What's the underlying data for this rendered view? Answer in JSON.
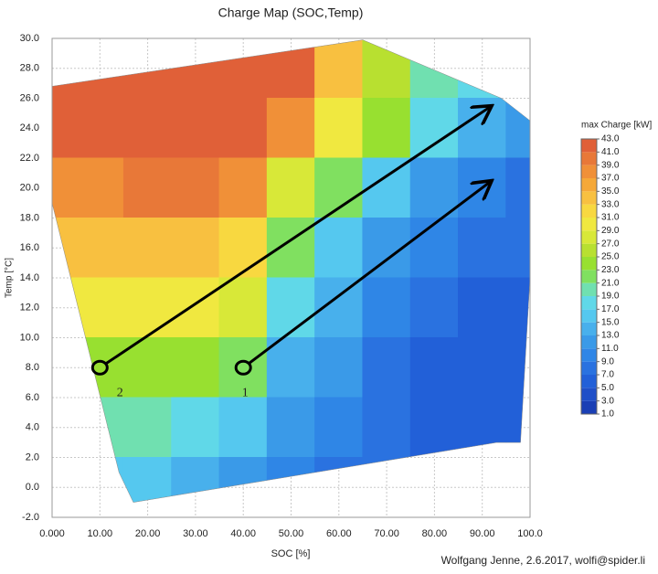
{
  "chart_data": {
    "type": "contour",
    "title": "Charge Map (SOC,Temp)",
    "x_label": "SOC [%]",
    "y_label": "Temp [°C]",
    "credit": "Wolfgang Jenne, 2.6.2017, wolfi@spider.li",
    "xlim": [
      0,
      100
    ],
    "xticks": [
      {
        "value": 0,
        "label": "0.000"
      },
      {
        "value": 10,
        "label": "10.00"
      },
      {
        "value": 20,
        "label": "20.00"
      },
      {
        "value": 30,
        "label": "30.00"
      },
      {
        "value": 40,
        "label": "40.00"
      },
      {
        "value": 50,
        "label": "50.00"
      },
      {
        "value": 60,
        "label": "60.00"
      },
      {
        "value": 70,
        "label": "70.00"
      },
      {
        "value": 80,
        "label": "80.00"
      },
      {
        "value": 90,
        "label": "90.00"
      },
      {
        "value": 100,
        "label": "100.0"
      }
    ],
    "ylim": [
      -2,
      30
    ],
    "yticks": [
      {
        "value": -2,
        "label": "-2.0"
      },
      {
        "value": 0,
        "label": "0.0"
      },
      {
        "value": 2,
        "label": "2.0"
      },
      {
        "value": 4,
        "label": "4.0"
      },
      {
        "value": 6,
        "label": "6.0"
      },
      {
        "value": 8,
        "label": "8.0"
      },
      {
        "value": 10,
        "label": "10.0"
      },
      {
        "value": 12,
        "label": "12.0"
      },
      {
        "value": 14,
        "label": "14.0"
      },
      {
        "value": 16,
        "label": "16.0"
      },
      {
        "value": 18,
        "label": "18.0"
      },
      {
        "value": 20,
        "label": "20.0"
      },
      {
        "value": 22,
        "label": "22.0"
      },
      {
        "value": 24,
        "label": "24.0"
      },
      {
        "value": 26,
        "label": "26.0"
      },
      {
        "value": 28,
        "label": "28.0"
      },
      {
        "value": 30,
        "label": "30.0"
      }
    ],
    "grid": true,
    "x": [
      0,
      10,
      20,
      30,
      40,
      50,
      60,
      70,
      80,
      90,
      100
    ],
    "y": [
      28,
      24,
      20,
      16,
      12,
      8,
      4,
      0
    ],
    "z": [
      [
        41,
        42,
        42,
        42,
        42,
        41,
        33,
        25,
        20,
        17,
        15
      ],
      [
        41,
        42,
        42,
        42,
        41,
        37,
        29,
        23,
        17,
        13,
        11
      ],
      [
        37,
        38,
        39,
        39,
        37,
        27,
        21,
        15,
        11,
        9,
        7
      ],
      [
        33,
        33,
        33,
        33,
        31,
        21,
        15,
        11,
        9,
        7,
        7
      ],
      [
        29,
        29,
        29,
        29,
        27,
        17,
        13,
        9,
        7,
        5,
        5
      ],
      [
        25,
        23,
        23,
        23,
        21,
        13,
        11,
        7,
        5,
        5,
        5
      ],
      [
        21,
        19,
        19,
        17,
        15,
        11,
        9,
        7,
        5,
        5,
        5
      ],
      [
        17,
        15,
        15,
        13,
        11,
        9,
        7,
        7,
        5,
        5,
        5
      ]
    ],
    "boundary": [
      [
        0,
        26.8
      ],
      [
        65,
        29.9
      ],
      [
        94,
        26
      ],
      [
        100,
        24.5
      ],
      [
        100,
        14
      ],
      [
        98,
        3
      ],
      [
        93,
        3
      ],
      [
        17,
        -1
      ],
      [
        14,
        1
      ],
      [
        0,
        19
      ]
    ],
    "colorbar": {
      "label": "max Charge [kW]",
      "levels": [
        {
          "value": 1,
          "label": "1.0"
        },
        {
          "value": 3,
          "label": "3.0"
        },
        {
          "value": 5,
          "label": "5.0"
        },
        {
          "value": 7,
          "label": "7.0"
        },
        {
          "value": 9,
          "label": "9.0"
        },
        {
          "value": 11,
          "label": "11.0"
        },
        {
          "value": 13,
          "label": "13.0"
        },
        {
          "value": 15,
          "label": "15.0"
        },
        {
          "value": 17,
          "label": "17.0"
        },
        {
          "value": 19,
          "label": "19.0"
        },
        {
          "value": 21,
          "label": "21.0"
        },
        {
          "value": 23,
          "label": "23.0"
        },
        {
          "value": 25,
          "label": "25.0"
        },
        {
          "value": 27,
          "label": "27.0"
        },
        {
          "value": 29,
          "label": "29.0"
        },
        {
          "value": 31,
          "label": "31.0"
        },
        {
          "value": 33,
          "label": "33.0"
        },
        {
          "value": 35,
          "label": "35.0"
        },
        {
          "value": 37,
          "label": "37.0"
        },
        {
          "value": 39,
          "label": "39.0"
        },
        {
          "value": 41,
          "label": "41.0"
        },
        {
          "value": 43,
          "label": "43.0"
        }
      ],
      "colors": [
        "#1a3fb5",
        "#1f4fc8",
        "#2260d8",
        "#2a72e0",
        "#2f86e6",
        "#3a9ae8",
        "#48b0ec",
        "#55c8ef",
        "#60d8e8",
        "#70e0b0",
        "#80e060",
        "#98e030",
        "#b8e030",
        "#d8e838",
        "#f0e840",
        "#f8d840",
        "#f8c040",
        "#f5a838",
        "#f09038",
        "#e87838",
        "#e06038"
      ]
    },
    "arrows": [
      {
        "label": "1",
        "start": [
          40,
          8
        ],
        "end": [
          92,
          20.5
        ]
      },
      {
        "label": "2",
        "start": [
          10,
          8
        ],
        "end": [
          92,
          25.5
        ]
      }
    ]
  }
}
